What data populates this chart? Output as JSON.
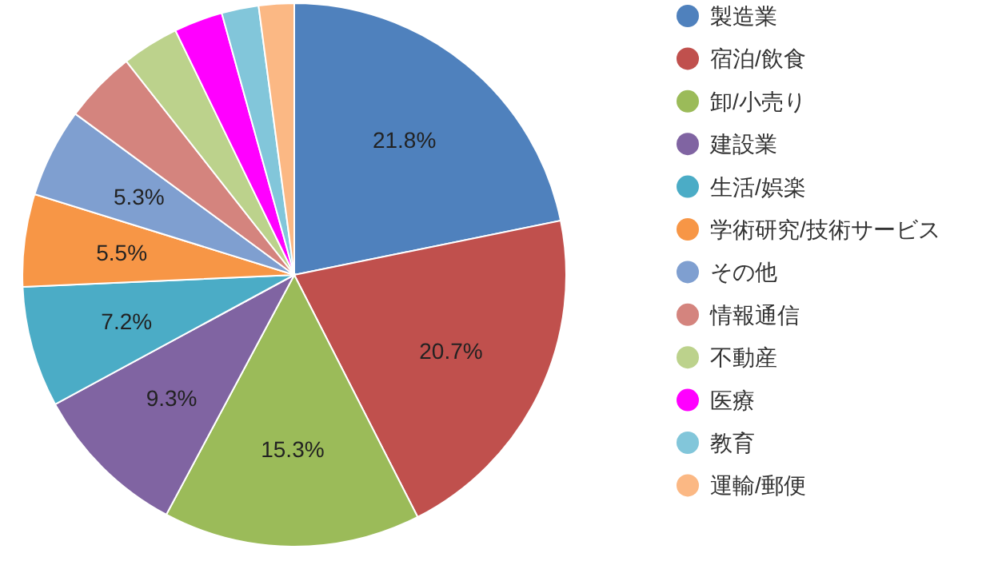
{
  "chart_data": {
    "type": "pie",
    "categories": [
      "製造業",
      "宿泊/飲食",
      "卸/小売り",
      "建設業",
      "生活/娯楽",
      "学術研究/技術サービス",
      "その他",
      "情報通信",
      "不動産",
      "医療",
      "教育",
      "運輸/郵便"
    ],
    "values": [
      21.8,
      20.7,
      15.3,
      9.3,
      7.2,
      5.5,
      5.3,
      4.3,
      3.4,
      2.9,
      2.2,
      2.1
    ],
    "colors": [
      "#4f81bd",
      "#c0504d",
      "#9bbb59",
      "#8064a2",
      "#4bacc6",
      "#f79646",
      "#7f9fd0",
      "#d4847e",
      "#bcd28c",
      "#ff00ff",
      "#82c6da",
      "#fbb884"
    ],
    "value_labels": [
      "21.8%",
      "20.7%",
      "15.3%",
      "9.3%",
      "7.2%",
      "5.5%",
      "5.3%",
      null,
      null,
      null,
      null,
      null
    ],
    "legend": "right"
  }
}
